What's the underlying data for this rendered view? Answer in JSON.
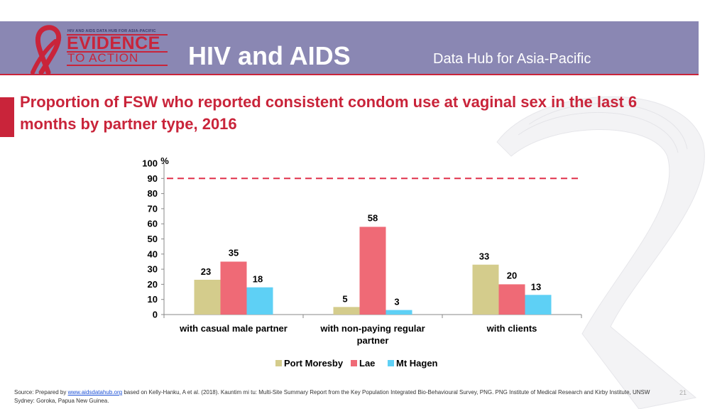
{
  "header": {
    "logo_small": "HIV AND AIDS DATA HUB FOR ASIA-PACIFIC",
    "logo_evidence": "EVIDENCE",
    "logo_to_action": "TO ACTION",
    "title": "HIV and AIDS",
    "subtitle": "Data Hub for Asia-Pacific"
  },
  "slide_title": "Proportion of FSW who reported consistent condom use at vaginal sex in the last 6 months by partner type, 2016",
  "colors": {
    "brand_red": "#c9243a",
    "header_purple": "#8a87b3",
    "port_moresby": "#d4cc8c",
    "lae": "#ef6a76",
    "mt_hagen": "#5ed0f5",
    "target_line": "#e0314a"
  },
  "chart_data": {
    "type": "bar",
    "title": "",
    "ylabel": "%",
    "ylim": [
      0,
      100
    ],
    "y_ticks": [
      0,
      10,
      20,
      30,
      40,
      50,
      60,
      70,
      80,
      90,
      100
    ],
    "categories": [
      "with casual male partner",
      "with non-paying regular partner",
      "with clients"
    ],
    "series": [
      {
        "name": "Port Moresby",
        "values": [
          23,
          5,
          33
        ]
      },
      {
        "name": "Lae",
        "values": [
          35,
          58,
          20
        ]
      },
      {
        "name": "Mt Hagen",
        "values": [
          18,
          3,
          13
        ]
      }
    ],
    "reference_line": 90,
    "legend_position": "bottom",
    "grid": false
  },
  "footer": {
    "source_prefix": "Source: Prepared by ",
    "source_link": "www.aidsdatahub.org",
    "source_rest": " based on Kelly-Hanku, A et al. (2018). Kauntim mi tu: Multi-Site Summary Report from the Key Population Integrated Bio-Behavioural Survey, PNG. PNG Institute of Medical Research and Kirby Institute, UNSW Sydney: Goroka, Papua New Guinea.",
    "page_number": "21"
  }
}
